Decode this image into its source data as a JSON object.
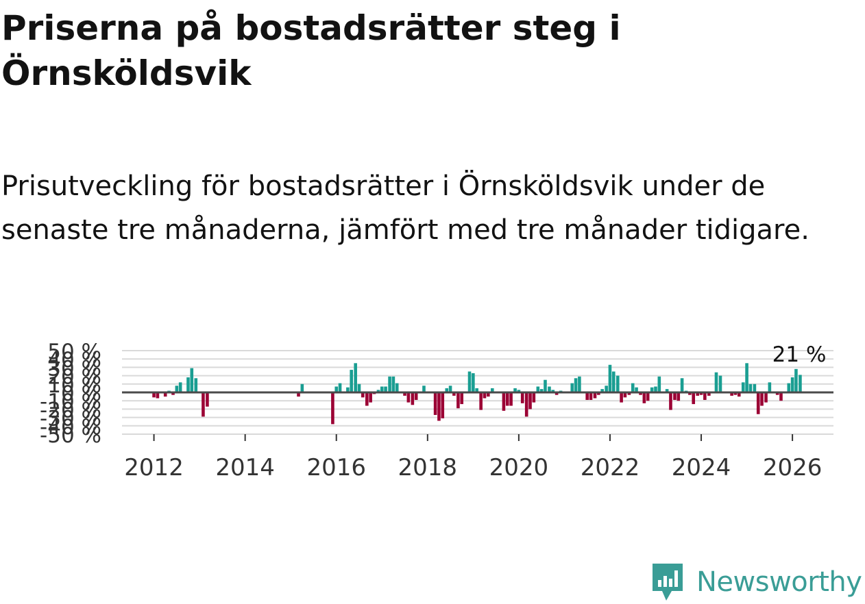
{
  "title": "Priserna på bostadsrätter steg i Örnsköldsvik",
  "subtitle": "Prisutveckling för bostadsrätter i Örnsköldsvik under de senaste tre månaderna, jämfört med tre månader tidigare.",
  "brand": {
    "name": "Newsworthy"
  },
  "colors": {
    "positive": "#1a9e92",
    "negative": "#9b0034",
    "grid": "#d9d9d9",
    "zero": "#4a4a4a",
    "text": "#333333",
    "brand": "#3a9d96"
  },
  "chart_data": {
    "type": "bar",
    "title": "Priserna på bostadsrätter steg i Örnsköldsvik",
    "xlabel": "",
    "ylabel": "",
    "unit": "%",
    "x_ticks": [
      "2012",
      "2014",
      "2016",
      "2018",
      "2020",
      "2022",
      "2024",
      "2026"
    ],
    "y_ticks": [
      "50 %",
      "40 %",
      "30 %",
      "20 %",
      "10 %",
      "0 %",
      "-10 %",
      "-20 %",
      "-30 %",
      "-40 %",
      "-50 %"
    ],
    "y_tick_values": [
      50,
      40,
      30,
      20,
      10,
      0,
      -10,
      -20,
      -30,
      -40,
      -50
    ],
    "xlim": [
      2011.3,
      2026.9
    ],
    "ylim": [
      -50,
      50
    ],
    "last_value_label": "21 %",
    "series": [
      {
        "name": "Prisutveckling",
        "x": [
          2011.75,
          2011.83,
          2011.92,
          2012.0,
          2012.08,
          2012.17,
          2012.25,
          2012.33,
          2012.42,
          2012.5,
          2012.58,
          2012.67,
          2012.75,
          2012.83,
          2012.92,
          2013.0,
          2013.08,
          2013.17,
          2013.25,
          2015.17,
          2015.25,
          2015.75,
          2015.83,
          2015.92,
          2016.0,
          2016.08,
          2016.17,
          2016.25,
          2016.33,
          2016.42,
          2016.5,
          2016.58,
          2016.67,
          2016.75,
          2016.83,
          2016.92,
          2017.0,
          2017.08,
          2017.17,
          2017.25,
          2017.33,
          2017.42,
          2017.5,
          2017.58,
          2017.67,
          2017.75,
          2017.83,
          2017.92,
          2018.0,
          2018.08,
          2018.17,
          2018.25,
          2018.33,
          2018.42,
          2018.5,
          2018.58,
          2018.67,
          2018.75,
          2018.83,
          2018.92,
          2019.0,
          2019.08,
          2019.17,
          2019.25,
          2019.33,
          2019.42,
          2019.5,
          2019.58,
          2019.67,
          2019.75,
          2019.83,
          2019.92,
          2020.0,
          2020.08,
          2020.17,
          2020.25,
          2020.33,
          2020.42,
          2020.5,
          2020.58,
          2020.67,
          2020.75,
          2020.83,
          2020.92,
          2021.0,
          2021.08,
          2021.17,
          2021.25,
          2021.33,
          2021.42,
          2021.5,
          2021.58,
          2021.67,
          2021.75,
          2021.83,
          2021.92,
          2022.0,
          2022.08,
          2022.17,
          2022.25,
          2022.33,
          2022.42,
          2022.5,
          2022.58,
          2022.67,
          2022.75,
          2022.83,
          2022.92,
          2023.0,
          2023.08,
          2023.17,
          2023.25,
          2023.33,
          2023.42,
          2023.5,
          2023.58,
          2023.67,
          2023.75,
          2023.83,
          2023.92,
          2024.0,
          2024.08,
          2024.17,
          2024.25,
          2024.33,
          2024.42,
          2024.5,
          2024.58,
          2024.67,
          2024.75,
          2024.83,
          2024.92,
          2025.0,
          2025.08,
          2025.17,
          2025.25,
          2025.33,
          2025.42,
          2025.5,
          2025.58,
          2025.67,
          2025.75,
          2025.83,
          2025.92,
          2026.0,
          2026.08,
          2026.17
        ],
        "values": [
          0,
          0,
          0,
          -6,
          -7,
          -1,
          -5,
          2,
          -3,
          8,
          12,
          0,
          18,
          29,
          17,
          0,
          -29,
          -17,
          0,
          -5,
          10,
          0,
          0,
          -38,
          7,
          11,
          0,
          6,
          27,
          35,
          10,
          -6,
          -16,
          -12,
          -2,
          3,
          7,
          7,
          19,
          19,
          11,
          0,
          -4,
          -12,
          -15,
          -9,
          0,
          8,
          0,
          0,
          -27,
          -34,
          -31,
          5,
          8,
          -4,
          -19,
          -14,
          0,
          25,
          23,
          5,
          -21,
          -7,
          -5,
          5,
          0,
          0,
          -22,
          -16,
          -16,
          5,
          3,
          -13,
          -29,
          -20,
          -12,
          7,
          4,
          15,
          7,
          3,
          -3,
          2,
          0,
          0,
          11,
          17,
          19,
          0,
          -9,
          -9,
          -7,
          -3,
          4,
          8,
          33,
          25,
          20,
          -12,
          -6,
          -3,
          11,
          6,
          -3,
          -13,
          -10,
          6,
          7,
          19,
          0,
          4,
          -21,
          -9,
          -10,
          17,
          2,
          -3,
          -14,
          -4,
          -3,
          -9,
          -4,
          0,
          24,
          20,
          0,
          0,
          -4,
          -3,
          -5,
          12,
          35,
          10,
          10,
          -26,
          -16,
          -12,
          12,
          0,
          -3,
          -10,
          0,
          11,
          18,
          28,
          21
        ]
      }
    ]
  }
}
